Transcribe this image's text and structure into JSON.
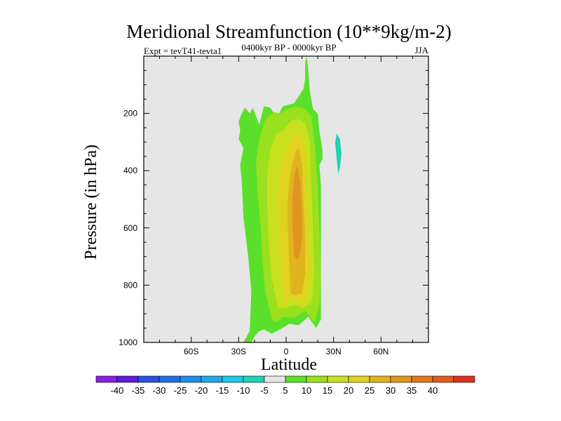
{
  "chart_data": {
    "type": "contour",
    "title": "Meridional Streamfunction (10**9kg/m-2)",
    "subtitle_left": "Expt = tevT41-tevta1",
    "subtitle_center": "0400kyr BP - 0000kyr BP",
    "subtitle_right": "JJA",
    "xlabel": "Latitude",
    "ylabel": "Pressure (in hPa)",
    "xlim": [
      -90,
      90
    ],
    "ylim": [
      1000,
      0
    ],
    "x_ticks": [
      {
        "value": -60,
        "label": "60S"
      },
      {
        "value": -30,
        "label": "30S"
      },
      {
        "value": 0,
        "label": "0"
      },
      {
        "value": 30,
        "label": "30N"
      },
      {
        "value": 60,
        "label": "60N"
      }
    ],
    "y_ticks": [
      {
        "value": 200,
        "label": "200"
      },
      {
        "value": 400,
        "label": "400"
      },
      {
        "value": 600,
        "label": "600"
      },
      {
        "value": 800,
        "label": "800"
      },
      {
        "value": 1000,
        "label": "1000"
      }
    ],
    "background_color": "#e6e6e6",
    "colorbar": {
      "colors": [
        "#8a1ee0",
        "#5a1ee0",
        "#2a50e0",
        "#1e6ee6",
        "#1e8ee6",
        "#1eaae6",
        "#1ec8e6",
        "#1ed2b4",
        "#e6e6e6",
        "#5ae02a",
        "#9ae01e",
        "#c8e01e",
        "#e0d21e",
        "#e0b41e",
        "#e0961e",
        "#e0781e",
        "#e05a1e",
        "#e0321e"
      ],
      "labels": [
        "-40",
        "-35",
        "-30",
        "-25",
        "-20",
        "-15",
        "-10",
        "-5",
        "5",
        "10",
        "15",
        "20",
        "25",
        "30",
        "35",
        "40"
      ]
    },
    "regions": [
      {
        "name": "contour-level-5",
        "color": "#5ae02a",
        "points": [
          [
            -27,
            1000
          ],
          [
            -23,
            960
          ],
          [
            -22,
            820
          ],
          [
            -24,
            700
          ],
          [
            -27,
            560
          ],
          [
            -28,
            440
          ],
          [
            -29,
            380
          ],
          [
            -27,
            320
          ],
          [
            -30,
            290
          ],
          [
            -29,
            260
          ],
          [
            -30,
            230
          ],
          [
            -28,
            200
          ],
          [
            -26,
            180
          ],
          [
            -23,
            200
          ],
          [
            -21,
            180
          ],
          [
            -17,
            240
          ],
          [
            -14,
            175
          ],
          [
            -10,
            180
          ],
          [
            -6,
            215
          ],
          [
            -2,
            175
          ],
          [
            5,
            165
          ],
          [
            8,
            140
          ],
          [
            11,
            115
          ],
          [
            12,
            80
          ],
          [
            12,
            25
          ],
          [
            13,
            0
          ],
          [
            14,
            50
          ],
          [
            15,
            120
          ],
          [
            17,
            185
          ],
          [
            20,
            200
          ],
          [
            21,
            260
          ],
          [
            23,
            330
          ],
          [
            23,
            360
          ],
          [
            21,
            380
          ],
          [
            22,
            450
          ],
          [
            22,
            750
          ],
          [
            22,
            920
          ],
          [
            19,
            950
          ],
          [
            14,
            910
          ],
          [
            8,
            940
          ],
          [
            2,
            935
          ],
          [
            -4,
            955
          ],
          [
            -9,
            970
          ],
          [
            -14,
            955
          ],
          [
            -17,
            960
          ],
          [
            -20,
            980
          ],
          [
            -22,
            1000
          ]
        ]
      },
      {
        "name": "contour-level-10",
        "color": "#9ae01e",
        "points": [
          [
            -9,
            920
          ],
          [
            -13,
            830
          ],
          [
            -15,
            720
          ],
          [
            -16,
            600
          ],
          [
            -18,
            480
          ],
          [
            -19,
            370
          ],
          [
            -17,
            290
          ],
          [
            -13,
            220
          ],
          [
            -8,
            195
          ],
          [
            -4,
            200
          ],
          [
            1,
            185
          ],
          [
            6,
            175
          ],
          [
            12,
            185
          ],
          [
            16,
            210
          ],
          [
            18,
            300
          ],
          [
            20,
            450
          ],
          [
            21,
            600
          ],
          [
            22,
            760
          ],
          [
            21,
            870
          ],
          [
            18,
            930
          ],
          [
            12,
            890
          ],
          [
            5,
            915
          ],
          [
            -2,
            910
          ],
          [
            -6,
            930
          ]
        ]
      },
      {
        "name": "contour-level-15",
        "color": "#c8e01e",
        "points": [
          [
            -5,
            880
          ],
          [
            -9,
            780
          ],
          [
            -11,
            650
          ],
          [
            -12,
            520
          ],
          [
            -12,
            420
          ],
          [
            -10,
            330
          ],
          [
            -6,
            270
          ],
          [
            -2,
            260
          ],
          [
            3,
            225
          ],
          [
            8,
            220
          ],
          [
            12,
            235
          ],
          [
            15,
            300
          ],
          [
            16,
            450
          ],
          [
            17,
            620
          ],
          [
            18,
            760
          ],
          [
            16,
            860
          ],
          [
            11,
            880
          ],
          [
            5,
            870
          ],
          [
            -1,
            880
          ]
        ]
      },
      {
        "name": "contour-level-20",
        "color": "#e0d21e",
        "points": [
          [
            -1,
            860
          ],
          [
            -3,
            760
          ],
          [
            -4,
            640
          ],
          [
            -5,
            520
          ],
          [
            -4,
            420
          ],
          [
            -1,
            340
          ],
          [
            3,
            290
          ],
          [
            7,
            265
          ],
          [
            10,
            280
          ],
          [
            12,
            350
          ],
          [
            13,
            470
          ],
          [
            14,
            640
          ],
          [
            15,
            760
          ],
          [
            13,
            845
          ],
          [
            8,
            855
          ],
          [
            3,
            845
          ]
        ]
      },
      {
        "name": "contour-level-25",
        "color": "#e0b41e",
        "points": [
          [
            3,
            830
          ],
          [
            2,
            720
          ],
          [
            1,
            600
          ],
          [
            1,
            500
          ],
          [
            3,
            400
          ],
          [
            6,
            330
          ],
          [
            8,
            320
          ],
          [
            10,
            380
          ],
          [
            11,
            500
          ],
          [
            12,
            640
          ],
          [
            12,
            760
          ],
          [
            10,
            830
          ],
          [
            6,
            835
          ]
        ]
      },
      {
        "name": "contour-level-30",
        "color": "#e0961e",
        "points": [
          [
            5,
            700
          ],
          [
            4,
            600
          ],
          [
            4,
            500
          ],
          [
            5,
            420
          ],
          [
            7,
            380
          ],
          [
            9,
            440
          ],
          [
            10,
            540
          ],
          [
            10,
            640
          ],
          [
            8,
            710
          ]
        ]
      },
      {
        "name": "contour-level-neg5",
        "color": "#1ed2b4",
        "points": [
          [
            32,
            270
          ],
          [
            34,
            290
          ],
          [
            35,
            340
          ],
          [
            34,
            390
          ],
          [
            33,
            410
          ],
          [
            32,
            360
          ],
          [
            31,
            300
          ]
        ]
      }
    ]
  }
}
